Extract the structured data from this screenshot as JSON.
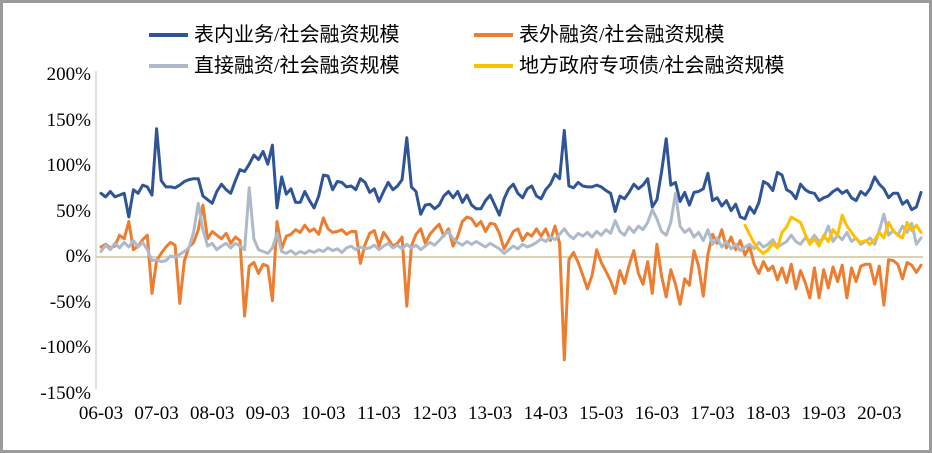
{
  "legend": {
    "position": "top",
    "items": [
      {
        "label": "表内业务/社会融资规模",
        "color": "#2F5597"
      },
      {
        "label": "表外融资/社会融资规模",
        "color": "#ED7D31"
      },
      {
        "label": "直接融资/社会融资规模",
        "color": "#AEB9CA"
      },
      {
        "label": "地方政府专项债/社会融资规模",
        "color": "#FFC000"
      }
    ]
  },
  "y_axis": {
    "ticks": [
      {
        "value": 200,
        "label": "200%"
      },
      {
        "value": 150,
        "label": "150%"
      },
      {
        "value": 100,
        "label": "100%"
      },
      {
        "value": 50,
        "label": "50%"
      },
      {
        "value": 0,
        "label": "0%"
      },
      {
        "value": -50,
        "label": "-50%"
      },
      {
        "value": -100,
        "label": "-100%"
      },
      {
        "value": -150,
        "label": "-150%"
      }
    ]
  },
  "x_axis": {
    "visible_tick_labels": [
      "06-03",
      "07-03",
      "08-03",
      "09-03",
      "10-03",
      "11-03",
      "12-03",
      "13-03",
      "14-03",
      "15-03",
      "16-03",
      "17-03",
      "18-03",
      "19-03",
      "20-03"
    ],
    "tick_every_n_points": 12
  },
  "chart_data": {
    "type": "line",
    "title": "",
    "xlabel": "",
    "ylabel": "",
    "ylim": [
      -150,
      200
    ],
    "grid": false,
    "frequency": "monthly",
    "zero_line_color": "#D9D2B4",
    "axis_color": "#D6D6D6",
    "x": [
      "06-03",
      "06-04",
      "06-05",
      "06-06",
      "06-07",
      "06-08",
      "06-09",
      "06-10",
      "06-11",
      "06-12",
      "07-01",
      "07-02",
      "07-03",
      "07-04",
      "07-05",
      "07-06",
      "07-07",
      "07-08",
      "07-09",
      "07-10",
      "07-11",
      "07-12",
      "08-01",
      "08-02",
      "08-03",
      "08-04",
      "08-05",
      "08-06",
      "08-07",
      "08-08",
      "08-09",
      "08-10",
      "08-11",
      "08-12",
      "09-01",
      "09-02",
      "09-03",
      "09-04",
      "09-05",
      "09-06",
      "09-07",
      "09-08",
      "09-09",
      "09-10",
      "09-11",
      "09-12",
      "10-01",
      "10-02",
      "10-03",
      "10-04",
      "10-05",
      "10-06",
      "10-07",
      "10-08",
      "10-09",
      "10-10",
      "10-11",
      "10-12",
      "11-01",
      "11-02",
      "11-03",
      "11-04",
      "11-05",
      "11-06",
      "11-07",
      "11-08",
      "11-09",
      "11-10",
      "11-11",
      "11-12",
      "12-01",
      "12-02",
      "12-03",
      "12-04",
      "12-05",
      "12-06",
      "12-07",
      "12-08",
      "12-09",
      "12-10",
      "12-11",
      "12-12",
      "13-01",
      "13-02",
      "13-03",
      "13-04",
      "13-05",
      "13-06",
      "13-07",
      "13-08",
      "13-09",
      "13-10",
      "13-11",
      "13-12",
      "14-01",
      "14-02",
      "14-03",
      "14-04",
      "14-05",
      "14-06",
      "14-07",
      "14-08",
      "14-09",
      "14-10",
      "14-11",
      "14-12",
      "15-01",
      "15-02",
      "15-03",
      "15-04",
      "15-05",
      "15-06",
      "15-07",
      "15-08",
      "15-09",
      "15-10",
      "15-11",
      "15-12",
      "16-01",
      "16-02",
      "16-03",
      "16-04",
      "16-05",
      "16-06",
      "16-07",
      "16-08",
      "16-09",
      "16-10",
      "16-11",
      "16-12",
      "17-01",
      "17-02",
      "17-03",
      "17-04",
      "17-05",
      "17-06",
      "17-07",
      "17-08",
      "17-09",
      "17-10",
      "17-11",
      "17-12",
      "18-01",
      "18-02",
      "18-03",
      "18-04",
      "18-05",
      "18-06",
      "18-07",
      "18-08",
      "18-09",
      "18-10",
      "18-11",
      "18-12",
      "19-01",
      "19-02",
      "19-03",
      "19-04",
      "19-05",
      "19-06",
      "19-07",
      "19-08",
      "19-09",
      "19-10",
      "19-11",
      "19-12",
      "20-01",
      "20-02",
      "20-03",
      "20-04",
      "20-05",
      "20-06",
      "20-07",
      "20-08",
      "20-09",
      "20-10",
      "20-11",
      "20-12"
    ],
    "series": [
      {
        "name": "表内业务/社会融资规模",
        "color": "#2F5597",
        "values": [
          70,
          66,
          72,
          66,
          68,
          70,
          44,
          74,
          70,
          79,
          77,
          68,
          141,
          84,
          77,
          77,
          76,
          79,
          83,
          85,
          86,
          86,
          67,
          63,
          59,
          72,
          80,
          74,
          70,
          84,
          96,
          94,
          102,
          112,
          107,
          116,
          102,
          123,
          54,
          88,
          69,
          75,
          60,
          60,
          72,
          62,
          54,
          67,
          90,
          89,
          74,
          83,
          82,
          77,
          78,
          74,
          86,
          82,
          71,
          75,
          61,
          72,
          82,
          74,
          78,
          85,
          131,
          77,
          72,
          47,
          57,
          58,
          53,
          57,
          67,
          72,
          65,
          72,
          60,
          68,
          57,
          53,
          53,
          62,
          68,
          57,
          46,
          64,
          75,
          80,
          70,
          65,
          75,
          78,
          67,
          64,
          74,
          80,
          91,
          86,
          139,
          78,
          76,
          82,
          78,
          77,
          77,
          79,
          77,
          73,
          70,
          50,
          67,
          64,
          71,
          80,
          75,
          79,
          86,
          55,
          63,
          94,
          130,
          79,
          82,
          61,
          71,
          57,
          71,
          72,
          75,
          92,
          62,
          65,
          56,
          62,
          51,
          58,
          44,
          42,
          55,
          48,
          60,
          83,
          80,
          73,
          93,
          90,
          74,
          71,
          64,
          80,
          74,
          71,
          70,
          62,
          65,
          67,
          72,
          75,
          70,
          73,
          65,
          62,
          72,
          68,
          75,
          88,
          80,
          75,
          65,
          70,
          70,
          58,
          62,
          52,
          55,
          71
        ]
      },
      {
        "name": "表外融资/社会融资规模",
        "color": "#ED7D31",
        "values": [
          11,
          14,
          10,
          12,
          24,
          20,
          39,
          8,
          12,
          19,
          24,
          -40,
          -4,
          4,
          11,
          16,
          13,
          -51,
          -4,
          11,
          16,
          30,
          57,
          20,
          28,
          24,
          20,
          26,
          15,
          22,
          18,
          -65,
          -10,
          -6,
          -18,
          -8,
          -10,
          -48,
          39,
          9,
          23,
          25,
          30,
          27,
          35,
          28,
          31,
          25,
          43,
          31,
          27,
          28,
          30,
          25,
          28,
          28,
          -7,
          14,
          26,
          29,
          12,
          27,
          20,
          12,
          15,
          22,
          -54,
          12,
          25,
          31,
          15,
          25,
          31,
          36,
          23,
          31,
          12,
          23,
          39,
          44,
          42,
          34,
          39,
          28,
          37,
          36,
          26,
          9,
          18,
          28,
          31,
          18,
          26,
          23,
          31,
          23,
          31,
          18,
          34,
          15,
          -113,
          -3,
          5,
          -6,
          -20,
          -35,
          -20,
          8,
          -6,
          -16,
          -26,
          -40,
          -15,
          -29,
          -9,
          7,
          -18,
          -30,
          -5,
          -40,
          14,
          -21,
          -44,
          -14,
          -30,
          -52,
          -24,
          -31,
          7,
          -10,
          -43,
          3,
          25,
          15,
          30,
          10,
          22,
          8,
          18,
          2,
          12,
          -8,
          -18,
          -5,
          -15,
          -10,
          -25,
          -12,
          -28,
          -8,
          -35,
          -15,
          -28,
          -45,
          -12,
          -45,
          -14,
          -34,
          -11,
          -27,
          -9,
          -45,
          -12,
          -27,
          -10,
          -8,
          -8,
          -30,
          -10,
          -53,
          -3,
          -4,
          -8,
          -24,
          -6,
          -9,
          -17,
          -9
        ]
      },
      {
        "name": "直接融资/社会融资规模",
        "color": "#AEB9CA",
        "values": [
          6,
          13,
          8,
          15,
          10,
          16,
          11,
          18,
          11,
          16,
          8,
          -4,
          -3,
          -5,
          -4,
          1,
          0,
          3,
          6,
          10,
          28,
          59,
          30,
          12,
          15,
          8,
          12,
          15,
          10,
          15,
          12,
          8,
          76,
          20,
          8,
          6,
          4,
          10,
          26,
          6,
          4,
          7,
          3,
          6,
          4,
          7,
          5,
          8,
          6,
          10,
          7,
          9,
          5,
          10,
          12,
          8,
          11,
          9,
          10,
          13,
          8,
          12,
          15,
          10,
          13,
          9,
          14,
          10,
          13,
          8,
          12,
          16,
          13,
          18,
          24,
          28,
          20,
          16,
          13,
          17,
          14,
          17,
          14,
          11,
          15,
          12,
          9,
          4,
          8,
          12,
          9,
          14,
          11,
          13,
          16,
          20,
          17,
          22,
          19,
          25,
          31,
          24,
          20,
          26,
          23,
          27,
          22,
          28,
          24,
          30,
          26,
          40,
          28,
          24,
          33,
          27,
          34,
          30,
          38,
          52,
          42,
          28,
          24,
          38,
          70,
          34,
          27,
          31,
          22,
          27,
          18,
          30,
          14,
          21,
          11,
          17,
          9,
          14,
          7,
          11,
          14,
          9,
          16,
          11,
          14,
          19,
          11,
          14,
          17,
          24,
          17,
          14,
          21,
          17,
          24,
          17,
          21,
          34,
          17,
          24,
          19,
          27,
          17,
          21,
          14,
          17,
          21,
          14,
          29,
          47,
          24,
          29,
          24,
          34,
          27,
          37,
          14,
          21
        ]
      },
      {
        "name": "地方政府专项债/社会融资规模",
        "color": "#FFC000",
        "start_index": 139,
        "values": [
          35,
          25,
          15,
          8,
          4,
          8,
          15,
          10,
          27,
          33,
          44,
          41,
          38,
          25,
          14,
          20,
          12,
          24,
          17,
          30,
          24,
          46,
          34,
          27,
          20,
          16,
          18,
          14,
          19,
          27,
          21,
          38,
          29,
          24,
          21,
          38,
          29,
          35,
          27
        ]
      }
    ]
  }
}
